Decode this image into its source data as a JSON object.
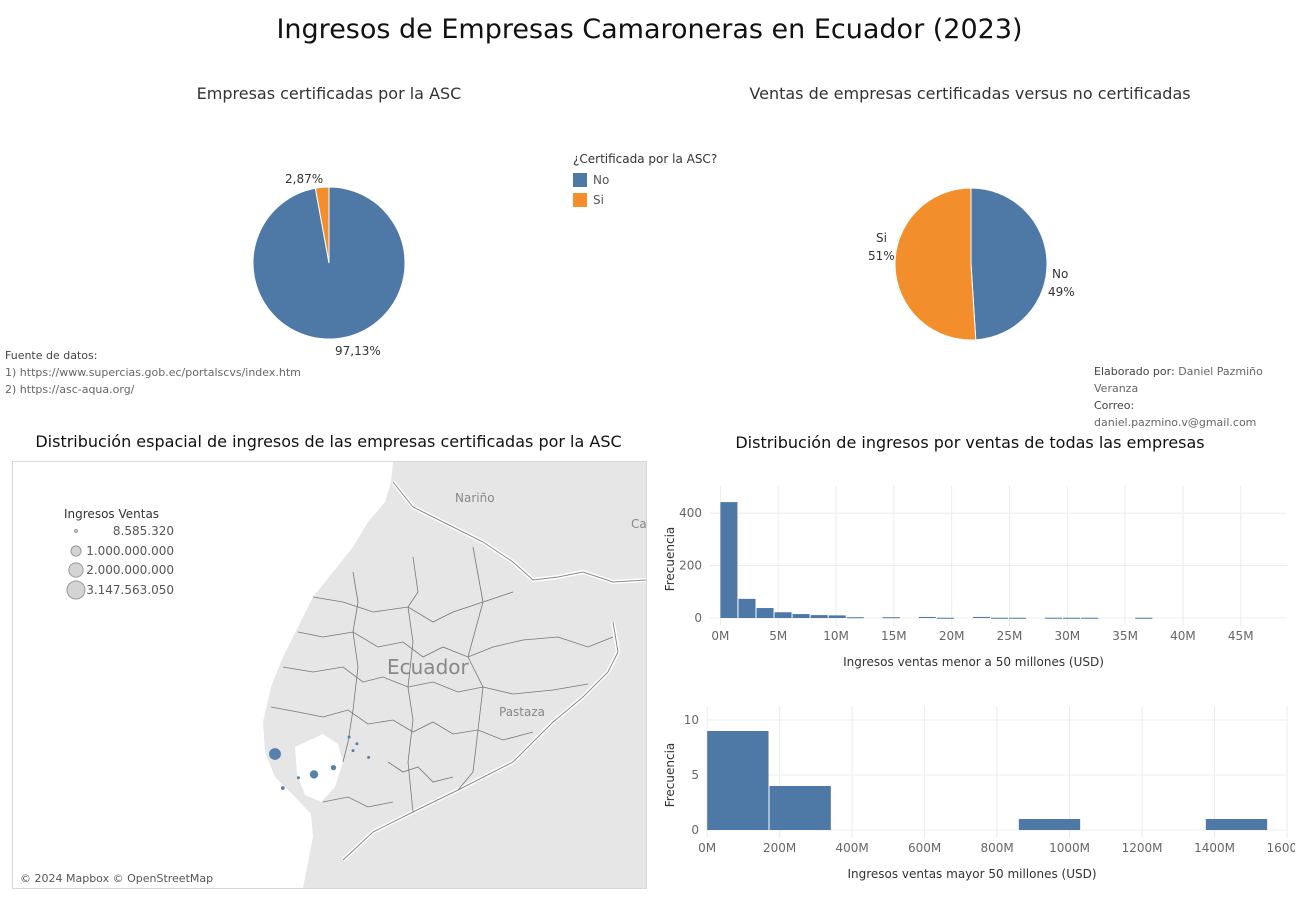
{
  "title": "Ingresos de Empresas Camaroneras en Ecuador (2023)",
  "colors": {
    "no": "#4e79a7",
    "si": "#f28e2b"
  },
  "panel1": {
    "title": "Empresas certificadas por la ASC",
    "legend_title": "¿Certificada por la ASC?",
    "legend_items": [
      "No",
      "Si"
    ]
  },
  "panel2": {
    "title": "Ventas de empresas certificadas versus no certificadas"
  },
  "sources": {
    "heading": "Fuente de datos:",
    "line1": "1) https://www.supercias.gob.ec/portalscvs/index.htm",
    "line2": "2) https://asc-aqua.org/"
  },
  "author": {
    "label": "Elaborado por:",
    "name": "Daniel Pazmiño Veranza",
    "email_label": "Correo:",
    "email": "daniel.pazmino.v@gmail.com"
  },
  "map": {
    "title": "Distribución espacial de ingresos de las empresas certificadas por la ASC",
    "legend_title": "Ingresos Ventas",
    "legend_values": [
      "8.585.320",
      "1.000.000.000",
      "2.000.000.000",
      "3.147.563.050"
    ],
    "labels": {
      "country": "Ecuador",
      "narino": "Nariño",
      "pastaza": "Pastaza",
      "ca": "Ca"
    },
    "attribution": "© 2024 Mapbox © OpenStreetMap"
  },
  "panel4": {
    "title": "Distribución de ingresos por ventas de todas las empresas"
  },
  "chart_data": [
    {
      "type": "pie",
      "title": "Empresas certificadas por la ASC",
      "legend_title": "¿Certificada por la ASC?",
      "slices": [
        {
          "label": "No",
          "value": 97.13,
          "text": "97,13%"
        },
        {
          "label": "Si",
          "value": 2.87,
          "text": "2,87%"
        }
      ]
    },
    {
      "type": "pie",
      "title": "Ventas de empresas certificadas versus no certificadas",
      "slices": [
        {
          "label": "No",
          "value": 49,
          "text": "49%"
        },
        {
          "label": "Si",
          "value": 51,
          "text": "51%"
        }
      ]
    },
    {
      "type": "bar",
      "title": "Distribución de ingresos por ventas de todas las empresas",
      "xlabel": "Ingresos ventas menor a 50 millones (USD)",
      "ylabel": "Frecuencia",
      "bin_width": 1.56,
      "bin_starts": [
        0,
        1.56,
        3.12,
        4.68,
        6.24,
        7.8,
        9.36,
        10.92,
        12.48,
        14.04,
        15.6,
        17.16,
        18.72,
        20.28,
        21.84,
        23.4,
        24.96,
        26.52,
        28.08,
        29.64,
        31.2,
        32.76,
        34.32,
        35.88,
        37.44
      ],
      "values": [
        442,
        73,
        38,
        22,
        15,
        11,
        10,
        3,
        0,
        3,
        0,
        4,
        1,
        0,
        4,
        1,
        1,
        0,
        1,
        1,
        1,
        0,
        0,
        1,
        0
      ],
      "xticks": [
        "0M",
        "5M",
        "10M",
        "15M",
        "20M",
        "25M",
        "30M",
        "35M",
        "40M",
        "45M"
      ],
      "yticks": [
        "0",
        "200",
        "400"
      ],
      "xlim": [
        -0.9,
        49
      ],
      "ylim": [
        0,
        450
      ],
      "grid": true
    },
    {
      "type": "bar",
      "xlabel": "Ingresos ventas mayor 50 millones (USD)",
      "ylabel": "Frecuencia",
      "bin_width": 172,
      "bin_starts": [
        0,
        172,
        860,
        1376
      ],
      "values": [
        9,
        4,
        1,
        1
      ],
      "xticks": [
        "0M",
        "200M",
        "400M",
        "600M",
        "800M",
        "1000M",
        "1200M",
        "1400M",
        "1600M"
      ],
      "yticks": [
        "0",
        "5",
        "10"
      ],
      "xlim": [
        -0.5,
        1600
      ],
      "ylim": [
        0,
        10
      ],
      "grid": true
    }
  ],
  "map_points": [
    {
      "lat": -2.3,
      "lon": -80.8,
      "revenue": 1000000000
    },
    {
      "lat": -2.6,
      "lon": -80.3,
      "revenue": 500000000
    },
    {
      "lat": -2.5,
      "lon": -80.05,
      "revenue": 200000000
    },
    {
      "lat": -2.8,
      "lon": -80.7,
      "revenue": 100000000
    },
    {
      "lat": -2.05,
      "lon": -79.85,
      "revenue": 60000000
    },
    {
      "lat": -2.15,
      "lon": -79.75,
      "revenue": 30000000
    },
    {
      "lat": -2.25,
      "lon": -79.8,
      "revenue": 20000000
    },
    {
      "lat": -2.65,
      "lon": -80.5,
      "revenue": 15000000
    },
    {
      "lat": -2.35,
      "lon": -79.6,
      "revenue": 10000000
    }
  ]
}
